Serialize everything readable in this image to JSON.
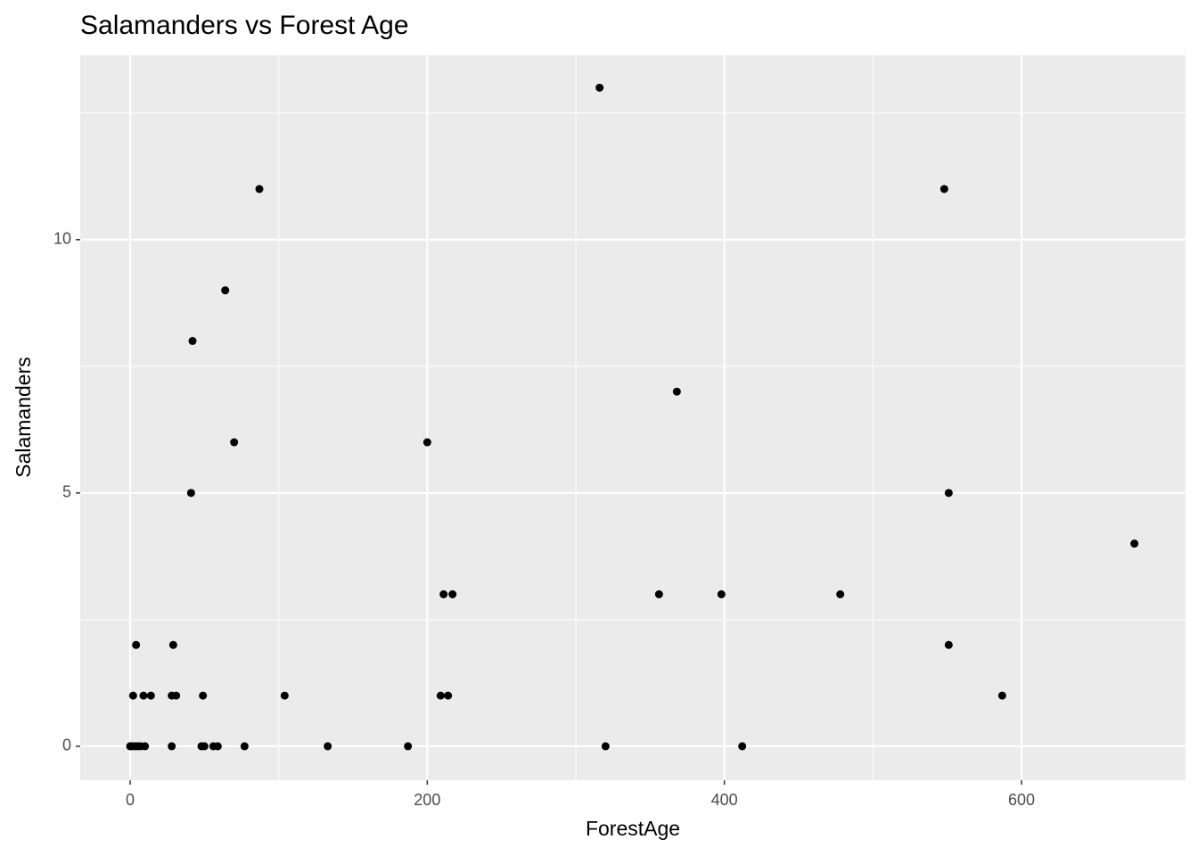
{
  "chart_data": {
    "type": "scatter",
    "title": "Salamanders vs Forest Age",
    "x_label": "ForestAge",
    "y_label": "Salamanders",
    "series": [
      {
        "name": "Salamanders",
        "color": "#000000",
        "x": [
          316,
          87,
          548,
          64,
          42,
          368,
          70,
          200,
          41,
          551,
          676,
          211,
          217,
          356,
          398,
          478,
          4,
          29,
          551,
          2,
          9,
          14,
          28,
          31,
          49,
          104,
          209,
          214,
          587,
          0,
          1,
          3,
          5,
          7,
          10,
          28,
          48,
          50,
          56,
          59,
          77,
          133,
          187,
          320,
          412
        ],
        "values": [
          13,
          11,
          11,
          9,
          8,
          7,
          6,
          6,
          5,
          5,
          4,
          3,
          3,
          3,
          3,
          3,
          2,
          2,
          2,
          1,
          1,
          1,
          1,
          1,
          1,
          1,
          1,
          1,
          1,
          0,
          0,
          0,
          0,
          0,
          0,
          0,
          0,
          0,
          0,
          0,
          0,
          0,
          0,
          0,
          0
        ]
      }
    ],
    "xlim": [
      -33.6,
      710.4
    ],
    "ylim": [
      -0.67,
      13.64
    ],
    "xticks": [
      0,
      200,
      400,
      600
    ],
    "yticks": [
      0,
      5,
      10
    ],
    "x_minor": [
      100,
      300,
      500
    ],
    "y_minor": [
      2.5,
      7.5,
      12.5
    ],
    "grid": true,
    "panel_color": "#ebebeb"
  }
}
